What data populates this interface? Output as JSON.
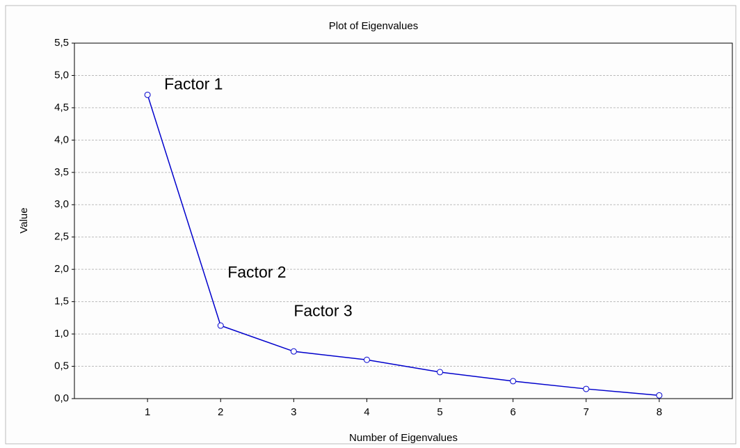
{
  "chart_data": {
    "type": "line",
    "title": "Plot of Eigenvalues",
    "xlabel": "Number of Eigenvalues",
    "ylabel": "Value",
    "x": [
      1,
      2,
      3,
      4,
      5,
      6,
      7,
      8
    ],
    "series": [
      {
        "name": "Eigenvalues",
        "color": "#0000cc",
        "values": [
          4.7,
          1.13,
          0.73,
          0.6,
          0.41,
          0.27,
          0.15,
          0.05
        ]
      }
    ],
    "xlim": [
      0,
      9
    ],
    "xticks": [
      1,
      2,
      3,
      4,
      5,
      6,
      7,
      8
    ],
    "ylim": [
      0,
      5.5
    ],
    "yticks": [
      {
        "value": 0,
        "label": "0,0"
      },
      {
        "value": 0.5,
        "label": "0,5"
      },
      {
        "value": 1,
        "label": "1,0"
      },
      {
        "value": 1.5,
        "label": "1,5"
      },
      {
        "value": 2,
        "label": "2,0"
      },
      {
        "value": 2.5,
        "label": "2,5"
      },
      {
        "value": 3,
        "label": "3,0"
      },
      {
        "value": 3.5,
        "label": "3,5"
      },
      {
        "value": 4,
        "label": "4,0"
      },
      {
        "value": 4.5,
        "label": "4,5"
      },
      {
        "value": 5,
        "label": "5,0"
      },
      {
        "value": 5.5,
        "label": "5,5"
      }
    ],
    "grid": true,
    "annotations": [
      "Factor 1",
      "Factor 2",
      "Factor 3"
    ]
  }
}
